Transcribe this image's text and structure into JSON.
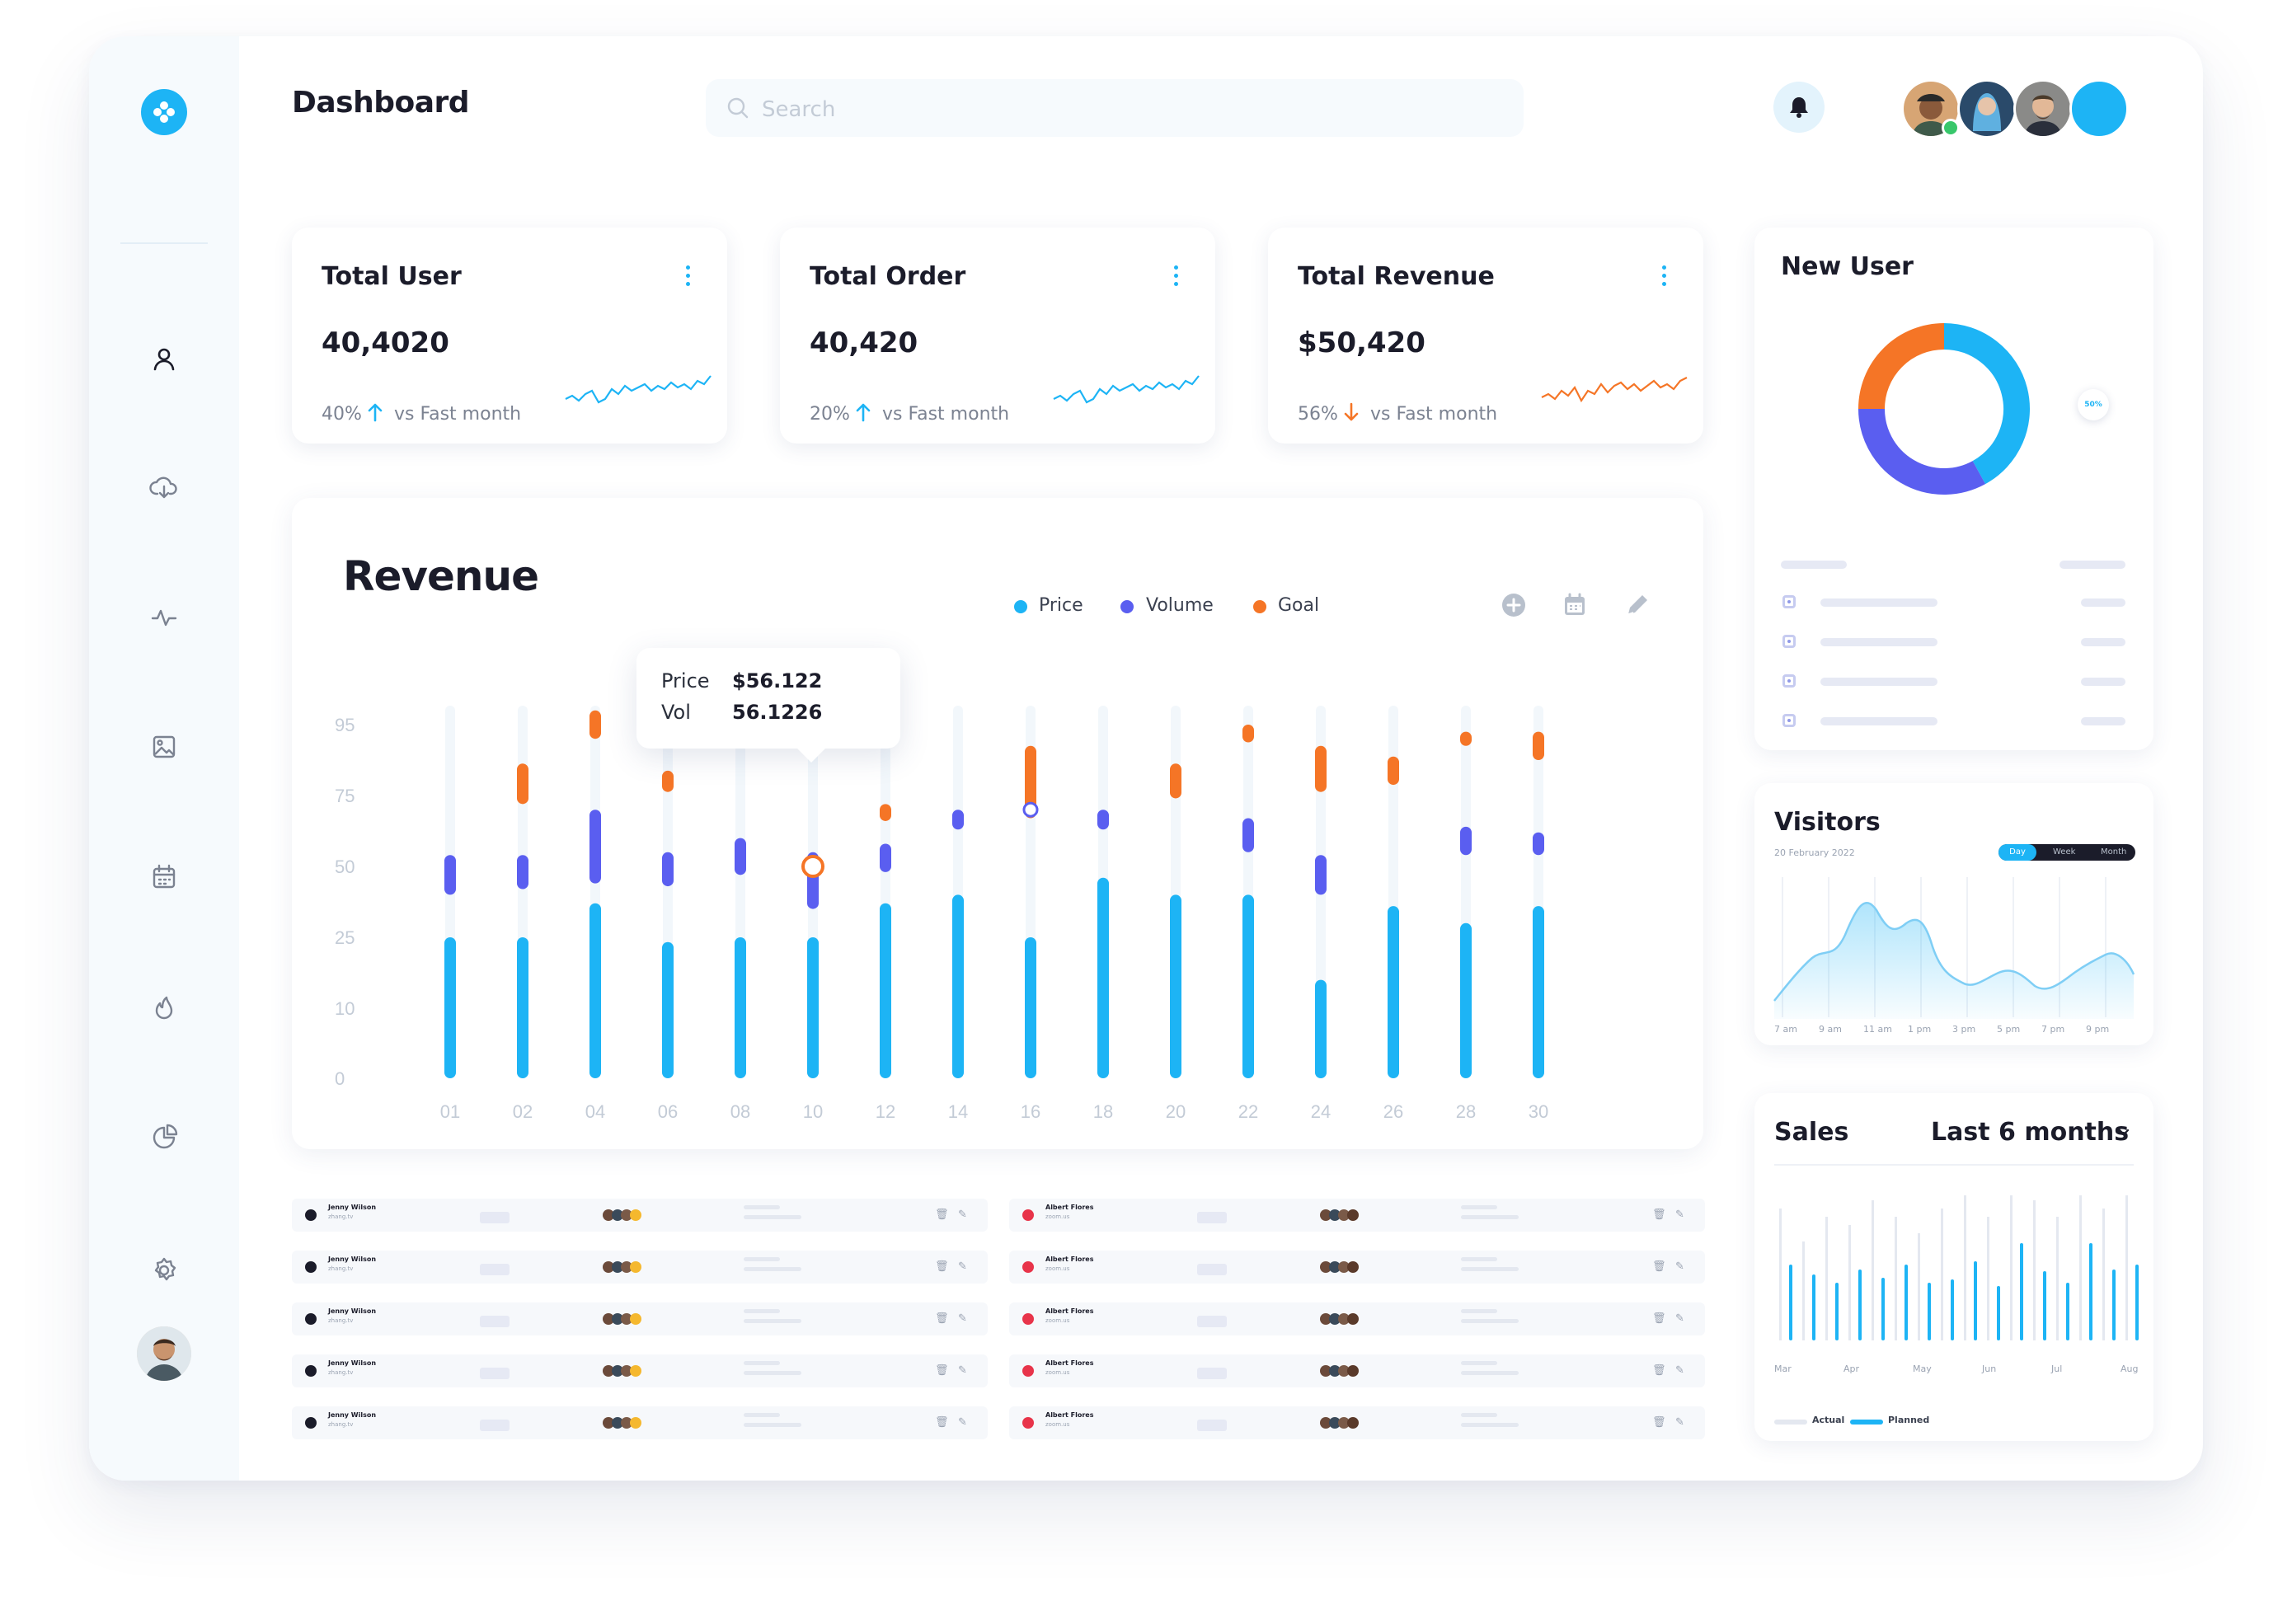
{
  "header": {
    "title": "Dashboard",
    "search_placeholder": "Search"
  },
  "sidebar": {
    "icons": [
      "user-icon",
      "cloud-download-icon",
      "activity-icon",
      "image-icon",
      "calendar-icon",
      "fire-icon",
      "pie-chart-icon",
      "settings-icon"
    ]
  },
  "colors": {
    "accent": "#1db4f5",
    "volume": "#5a5ef0",
    "goal": "#f57526",
    "down": "#f57526"
  },
  "stats": [
    {
      "title": "Total User",
      "value": "40,4020",
      "pct": "40%",
      "trend": "up",
      "compare": "vs Fast month"
    },
    {
      "title": "Total Order",
      "value": "40,420",
      "pct": "20%",
      "trend": "up",
      "compare": "vs Fast month"
    },
    {
      "title": "Total Revenue",
      "value": "$50,420",
      "pct": "56%",
      "trend": "down",
      "compare": "vs Fast month"
    }
  ],
  "revenue": {
    "title": "Revenue",
    "legend": [
      "Price",
      "Volume",
      "Goal"
    ],
    "tooltip": {
      "price_label": "Price",
      "price_value": "$56.122",
      "vol_label": "Vol",
      "vol_value": "56.1226"
    }
  },
  "chart_data": {
    "type": "bar",
    "title": "Revenue",
    "x": [
      "01",
      "02",
      "04",
      "06",
      "08",
      "10",
      "12",
      "14",
      "16",
      "18",
      "20",
      "22",
      "24",
      "26",
      "28",
      "30"
    ],
    "y_ticks": [
      0,
      10,
      25,
      50,
      75,
      95
    ],
    "ylim": [
      0,
      95
    ],
    "legend_position": "top-right",
    "series": [
      {
        "name": "Price",
        "color": "#1db4f5",
        "ranges": [
          [
            0,
            25
          ],
          [
            0,
            25
          ],
          [
            0,
            37
          ],
          [
            0,
            24
          ],
          [
            0,
            25
          ],
          [
            0,
            25
          ],
          [
            0,
            37
          ],
          [
            0,
            40
          ],
          [
            0,
            25
          ],
          [
            0,
            46
          ],
          [
            0,
            40
          ],
          [
            0,
            40
          ],
          [
            0,
            16
          ],
          [
            0,
            36
          ],
          [
            0,
            30
          ],
          [
            0,
            36
          ]
        ]
      },
      {
        "name": "Volume",
        "color": "#5a5ef0",
        "ranges": [
          [
            40,
            54
          ],
          [
            42,
            54
          ],
          [
            44,
            70
          ],
          [
            43,
            55
          ],
          [
            47,
            60
          ],
          [
            35,
            55
          ],
          [
            48,
            58
          ],
          [
            63,
            70
          ],
          [
            70,
            74
          ],
          [
            63,
            70
          ],
          [
            null,
            null
          ],
          [
            55,
            67
          ],
          [
            40,
            54
          ],
          [
            null,
            null
          ],
          [
            54,
            64
          ],
          [
            54,
            62
          ]
        ]
      },
      {
        "name": "Goal",
        "color": "#f57526",
        "ranges": [
          [
            null,
            null
          ],
          [
            72,
            84
          ],
          [
            91,
            99
          ],
          [
            76,
            82
          ],
          [
            null,
            null
          ],
          [
            null,
            null
          ],
          [
            66,
            72
          ],
          [
            null,
            null
          ],
          [
            67,
            89
          ],
          [
            null,
            null
          ],
          [
            74,
            84
          ],
          [
            90,
            95
          ],
          [
            76,
            89
          ],
          [
            78,
            86
          ],
          [
            89,
            93
          ],
          [
            85,
            93
          ]
        ]
      }
    ],
    "highlight": {
      "x": "10",
      "price": "$56.122",
      "vol": "56.1226"
    }
  },
  "tables": [
    {
      "rows": [
        {
          "name": "Jenny Wilson",
          "sub": "zhang.tv"
        },
        {
          "name": "Jenny Wilson",
          "sub": "zhang.tv"
        },
        {
          "name": "Jenny Wilson",
          "sub": "zhang.tv"
        },
        {
          "name": "Jenny Wilson",
          "sub": "zhang.tv"
        },
        {
          "name": "Jenny Wilson",
          "sub": "zhang.tv"
        }
      ]
    },
    {
      "rows": [
        {
          "name": "Albert Flores",
          "sub": "zoom.us"
        },
        {
          "name": "Albert Flores",
          "sub": "zoom.us"
        },
        {
          "name": "Albert Flores",
          "sub": "zoom.us"
        },
        {
          "name": "Albert Flores",
          "sub": "zoom.us"
        },
        {
          "name": "Albert Flores",
          "sub": "zoom.us"
        }
      ]
    }
  ],
  "new_user": {
    "title": "New User",
    "badge": "50%",
    "donut": [
      {
        "label": "blue",
        "value": 0.42,
        "color": "#1db4f5"
      },
      {
        "label": "indigo",
        "value": 0.33,
        "color": "#5a5ef0"
      },
      {
        "label": "orange",
        "value": 0.25,
        "color": "#f57526"
      }
    ]
  },
  "visitors": {
    "title": "Visitors",
    "date": "20 February 2022",
    "ranges": [
      "Day",
      "Week",
      "Month"
    ],
    "active_range": "Day",
    "x_labels": [
      "7 am",
      "9 am",
      "11 am",
      "1 pm",
      "3 pm",
      "5 pm",
      "7 pm",
      "9 pm"
    ]
  },
  "sales": {
    "title": "Sales",
    "period": "Last 6 months",
    "x_labels": [
      "Mar",
      "Apr",
      "May",
      "Jun",
      "Jul",
      "Aug"
    ],
    "legend": [
      "Actual",
      "Planned"
    ]
  }
}
